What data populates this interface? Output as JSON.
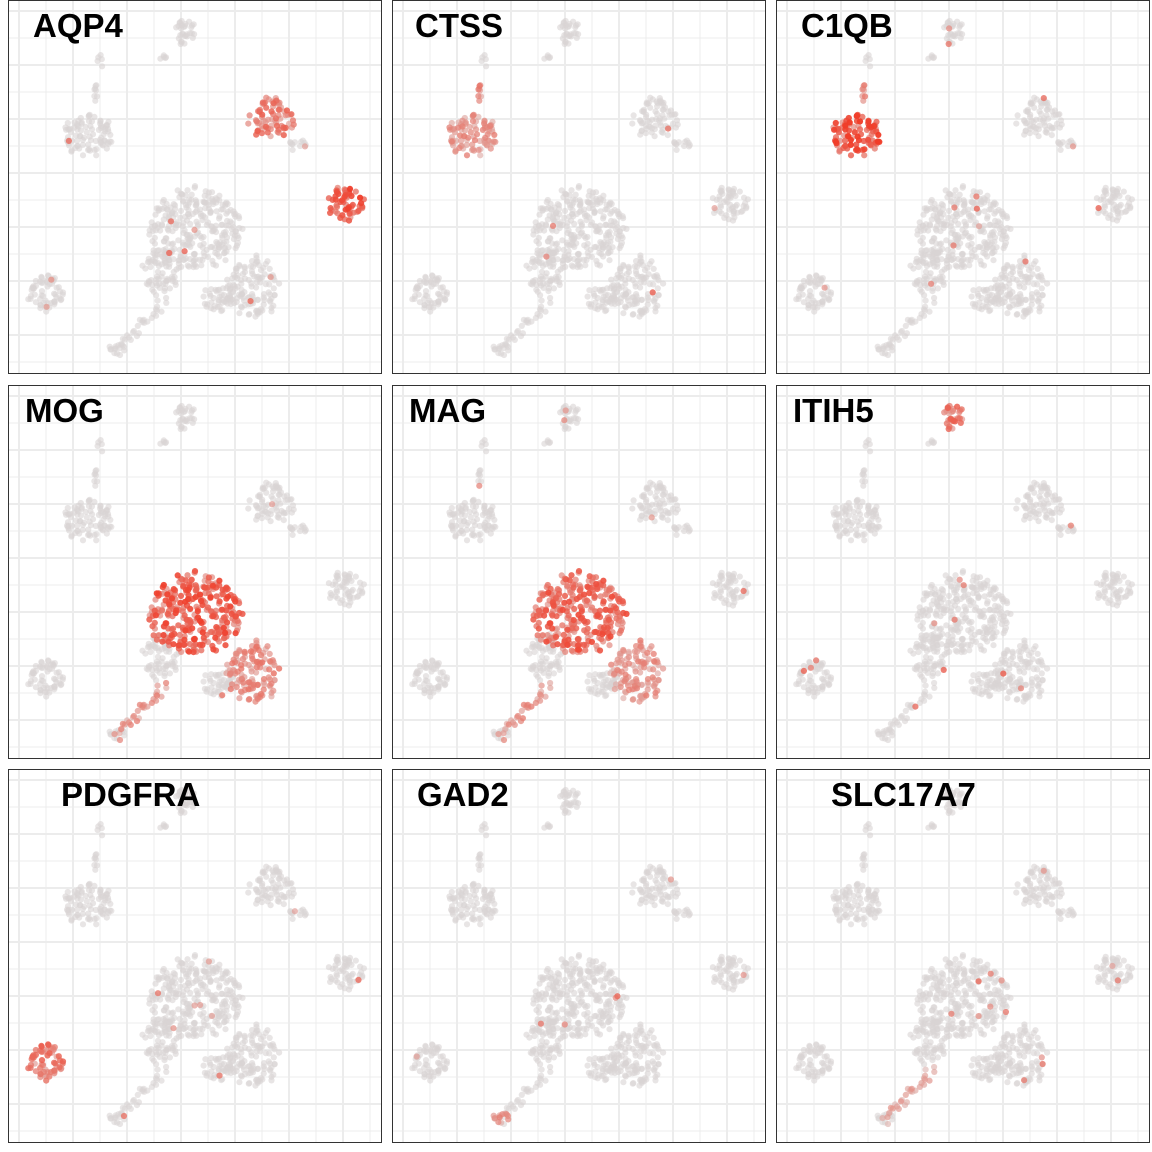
{
  "chart_data": {
    "type": "scatter",
    "colors": {
      "low": "#d9d3d3",
      "high": "#f03c28",
      "grid": "#ececec",
      "border": "#333333"
    },
    "grid": true,
    "panels": [
      {
        "gene": "AQP4",
        "hot": [
          {
            "cluster": "astro_a",
            "level": 0.6
          },
          {
            "cluster": "astro_b",
            "level": 0.8
          }
        ]
      },
      {
        "gene": "CTSS",
        "hot": [
          {
            "cluster": "micro",
            "level": 0.45
          },
          {
            "cluster": "micro_top",
            "level": 0.5
          }
        ]
      },
      {
        "gene": "C1QB",
        "hot": [
          {
            "cluster": "micro",
            "level": 0.8
          },
          {
            "cluster": "micro_top",
            "level": 0.5
          }
        ]
      },
      {
        "gene": "MOG",
        "hot": [
          {
            "cluster": "oligo",
            "level": 0.75
          },
          {
            "cluster": "oligo_right",
            "level": 0.5
          },
          {
            "cluster": "stream",
            "level": 0.45
          }
        ]
      },
      {
        "gene": "MAG",
        "hot": [
          {
            "cluster": "oligo",
            "level": 0.7
          },
          {
            "cluster": "oligo_right",
            "level": 0.45
          },
          {
            "cluster": "stream",
            "level": 0.45
          }
        ]
      },
      {
        "gene": "ITIH5",
        "hot": [
          {
            "cluster": "top",
            "level": 0.6
          }
        ]
      },
      {
        "gene": "PDGFRA",
        "hot": [
          {
            "cluster": "opc",
            "level": 0.6
          }
        ]
      },
      {
        "gene": "GAD2",
        "hot": [
          {
            "cluster": "tail",
            "level": 0.45
          }
        ]
      },
      {
        "gene": "SLC17A7",
        "hot": [
          {
            "cluster": "stream",
            "level": 0.35
          }
        ]
      }
    ]
  }
}
